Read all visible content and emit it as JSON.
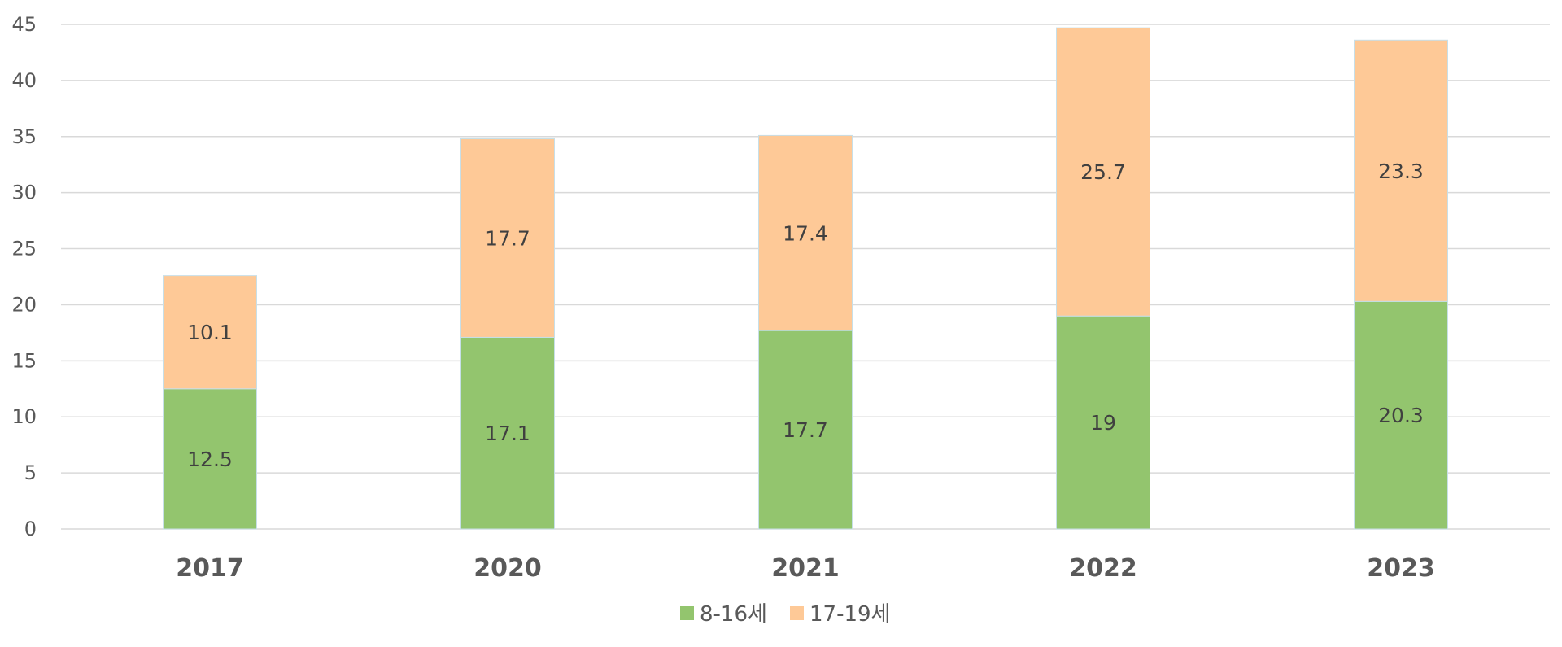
{
  "chart_data": {
    "type": "bar",
    "stacked": true,
    "categories": [
      "2017",
      "2020",
      "2021",
      "2022",
      "2023"
    ],
    "series": [
      {
        "name": "8-16세",
        "values": [
          12.5,
          17.1,
          17.7,
          19,
          20.3
        ],
        "color": "#93c56e"
      },
      {
        "name": "17-19세",
        "values": [
          10.1,
          17.7,
          17.4,
          25.7,
          23.3
        ],
        "color": "#fec997"
      }
    ],
    "ylim": [
      0,
      45
    ],
    "yticks": [
      0,
      5,
      10,
      15,
      20,
      25,
      30,
      35,
      40,
      45
    ],
    "grid": true,
    "legend_position": "bottom-center",
    "colors": {
      "grid": "#d9d9d9",
      "text": "#595959",
      "label": "#404040"
    }
  }
}
